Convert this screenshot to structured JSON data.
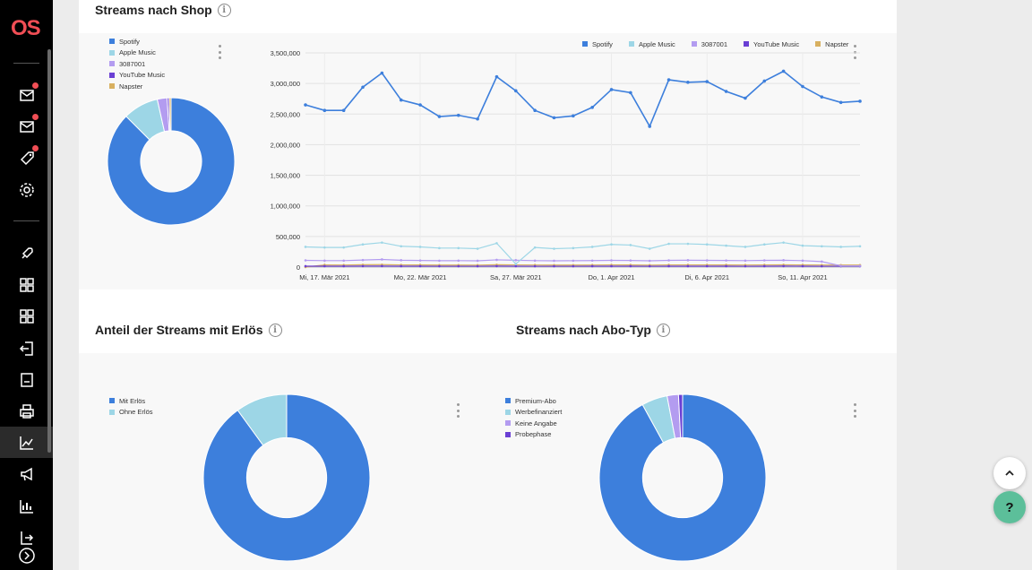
{
  "brand": {
    "logo_text": "OS",
    "accent": "#f04e55"
  },
  "sidebar": {
    "items": [
      {
        "icon": "mail-icon",
        "badge": true
      },
      {
        "icon": "mail-icon",
        "badge": true
      },
      {
        "icon": "tag-icon",
        "badge": true
      },
      {
        "icon": "gear-icon",
        "badge": false
      },
      {
        "icon": "rocket-icon",
        "badge": false
      },
      {
        "icon": "grid-icon",
        "badge": false
      },
      {
        "icon": "grid-icon",
        "badge": false
      },
      {
        "icon": "import-icon",
        "badge": false
      },
      {
        "icon": "document-icon",
        "badge": false
      },
      {
        "icon": "printer-icon",
        "badge": false
      },
      {
        "icon": "line-chart-icon",
        "badge": false,
        "active": true
      },
      {
        "icon": "megaphone-icon",
        "badge": false
      },
      {
        "icon": "bar-chart-icon",
        "badge": false
      },
      {
        "icon": "export-icon",
        "badge": false
      },
      {
        "icon": "chevron-right-icon",
        "badge": false
      }
    ]
  },
  "sections": {
    "shop": {
      "title": "Streams nach Shop"
    },
    "revenue": {
      "title": "Anteil der Streams mit Erlös"
    },
    "abo": {
      "title": "Streams nach Abo-Typ"
    }
  },
  "colors": {
    "spotify": "#3d7fdc",
    "apple": "#9dd6e6",
    "id3087001": "#b39cf0",
    "youtube": "#6a3fd4",
    "napster": "#d8b060"
  },
  "chart_data": [
    {
      "type": "pie",
      "title": "Streams nach Shop",
      "legend": [
        "Spotify",
        "Apple Music",
        "3087001",
        "YouTube Music",
        "Napster"
      ],
      "values": [
        87.5,
        9.0,
        2.5,
        0.5,
        0.5
      ],
      "donut": true
    },
    {
      "type": "line",
      "title": "",
      "legend_position": "top-right",
      "ylim": [
        0,
        3500000
      ],
      "yticks": [
        "0",
        "500,000",
        "1,000,000",
        "1,500,000",
        "2,000,000",
        "2,500,000",
        "3,000,000",
        "3,500,000"
      ],
      "xticks": [
        "Mi, 17. Mär 2021",
        "Mo, 22. Mär 2021",
        "Sa, 27. Mär 2021",
        "Do, 1. Apr 2021",
        "Di, 6. Apr 2021",
        "So, 11. Apr 2021"
      ],
      "x_start": "2021-03-16",
      "series": [
        {
          "name": "Spotify",
          "values": [
            2650000,
            2560000,
            2560000,
            2940000,
            3170000,
            2730000,
            2650000,
            2460000,
            2480000,
            2420000,
            3110000,
            2880000,
            2560000,
            2440000,
            2470000,
            2610000,
            2900000,
            2850000,
            2300000,
            3060000,
            3020000,
            3030000,
            2870000,
            2760000,
            3040000,
            3200000,
            2950000,
            2780000,
            2690000,
            2710000
          ]
        },
        {
          "name": "Apple Music",
          "values": [
            330000,
            320000,
            320000,
            370000,
            400000,
            340000,
            330000,
            310000,
            310000,
            300000,
            390000,
            50000,
            320000,
            300000,
            310000,
            330000,
            370000,
            360000,
            300000,
            380000,
            380000,
            370000,
            350000,
            330000,
            370000,
            400000,
            350000,
            340000,
            330000,
            340000
          ]
        },
        {
          "name": "3087001",
          "values": [
            110000,
            105000,
            105000,
            115000,
            125000,
            112000,
            108000,
            104000,
            105000,
            103000,
            118000,
            112000,
            105000,
            103000,
            104000,
            106000,
            110000,
            108000,
            102000,
            110000,
            112000,
            110000,
            108000,
            105000,
            110000,
            112000,
            105000,
            90000,
            20000,
            20000
          ]
        },
        {
          "name": "YouTube Music",
          "values": [
            15000,
            15000,
            15000,
            16000,
            17000,
            15000,
            15000,
            14000,
            14000,
            14000,
            16000,
            15000,
            14000,
            14000,
            14000,
            15000,
            15000,
            15000,
            14000,
            15000,
            15000,
            15000,
            15000,
            14000,
            15000,
            16000,
            15000,
            14000,
            14000,
            14000
          ]
        },
        {
          "name": "Napster",
          "values": [
            0,
            35000,
            34000,
            38000,
            40000,
            36000,
            35000,
            33000,
            33000,
            32000,
            38000,
            36000,
            34000,
            33000,
            33000,
            34000,
            36000,
            35000,
            32000,
            36000,
            36000,
            36000,
            35000,
            34000,
            36000,
            37000,
            35000,
            34000,
            33000,
            33000
          ]
        }
      ]
    },
    {
      "type": "pie",
      "title": "Anteil der Streams mit Erlös",
      "legend": [
        "Mit Erlös",
        "Ohne Erlös"
      ],
      "values": [
        90.0,
        10.0
      ],
      "donut": true
    },
    {
      "type": "pie",
      "title": "Streams nach Abo-Typ",
      "legend": [
        "Premium-Abo",
        "Werbefinanziert",
        "Keine Angabe",
        "Probephase"
      ],
      "values": [
        92.0,
        5.0,
        2.2,
        0.8
      ],
      "donut": true
    }
  ]
}
